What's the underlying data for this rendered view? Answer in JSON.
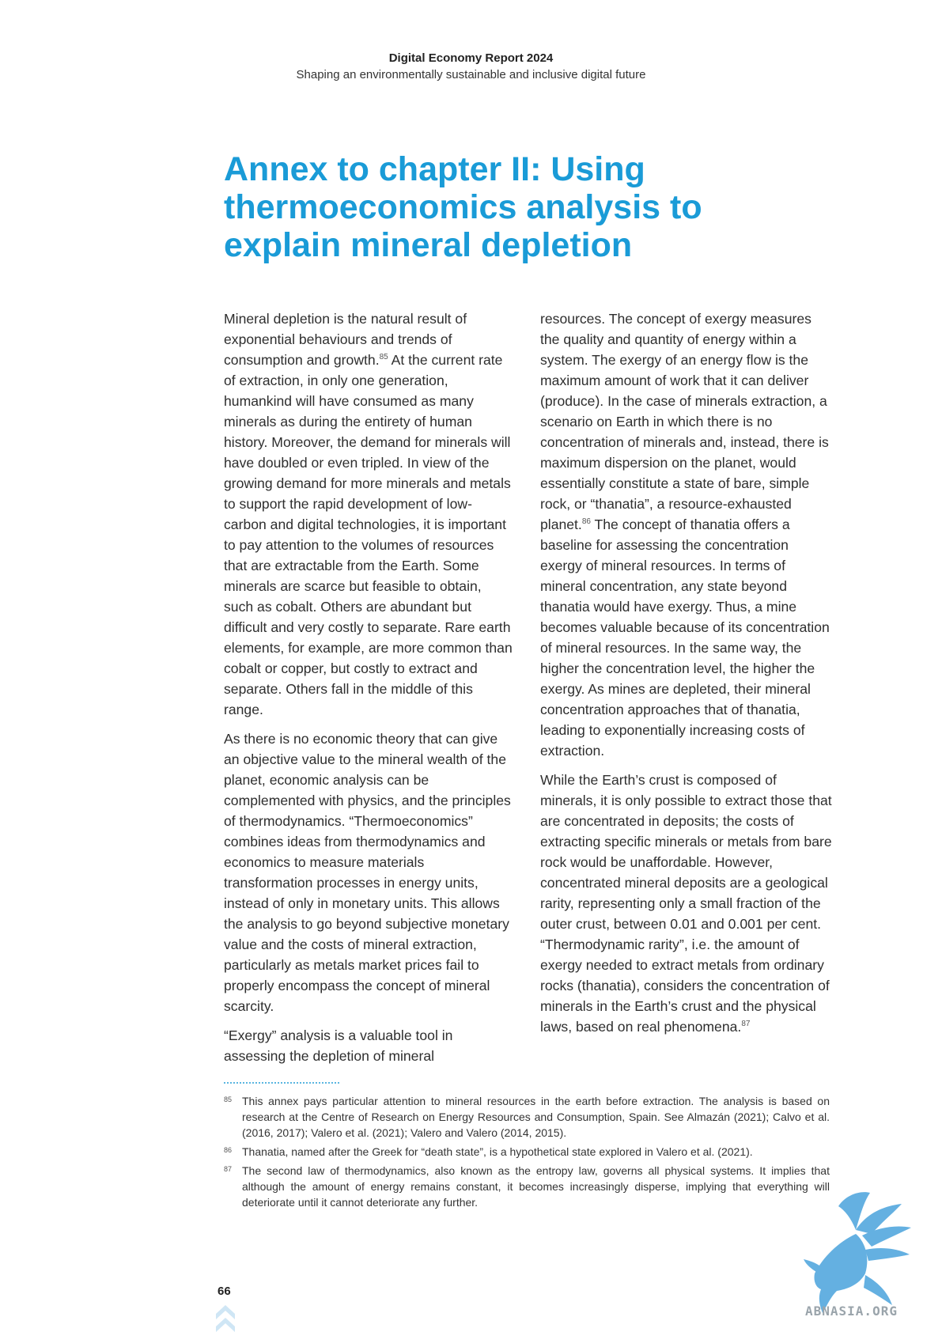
{
  "header": {
    "report_title": "Digital Economy Report 2024",
    "report_subtitle": "Shaping an environmentally sustainable and inclusive digital future"
  },
  "annex": {
    "title": "Annex to chapter II: Using thermoeconomics analysis to explain mineral depletion"
  },
  "body": {
    "left": {
      "p1_a": "Mineral depletion is the natural result of exponential behaviours and trends of consumption and growth.",
      "p1_fn": "85",
      "p1_b": " At the current rate of extraction, in only one generation, humankind will have consumed as many minerals as during the entirety of human history. Moreover, the demand for minerals will have doubled or even tripled. In view of the growing demand for more minerals and metals to support the rapid development of low-carbon and digital technologies, it is important to pay attention to the volumes of resources that are extractable from the Earth. Some minerals are scarce but feasible to obtain, such as cobalt. Others are abundant but difficult and very costly to separate. Rare earth elements, for example, are more common than cobalt or copper, but costly to extract and separate. Others fall in the middle of this range.",
      "p2": "As there is no economic theory that can give an objective value to the mineral wealth of the planet, economic analysis can be complemented with physics, and the principles of thermodynamics. “Thermoeconomics” combines ideas from thermodynamics and economics to measure materials transformation processes in energy units, instead of only in monetary units. This allows the analysis to go beyond subjective monetary value and the costs of mineral extraction, particularly as metals market prices fail to properly encompass the concept of mineral scarcity.",
      "p3": " “Exergy” analysis is a valuable tool in assessing the depletion of mineral"
    },
    "right": {
      "p1_a": "resources. The concept of exergy measures the quality and quantity of energy within a system. The exergy of an energy flow is the maximum amount of work that it can deliver (produce). In the case of minerals extraction, a scenario on Earth in which there is no concentration of minerals and, instead, there is maximum dispersion on the planet, would essentially constitute a state of bare, simple rock, or “thanatia”, a resource-exhausted planet.",
      "p1_fn": "86",
      "p1_b": " The concept of thanatia offers a baseline for assessing the concentration exergy of mineral resources. In terms of mineral concentration, any state beyond thanatia would have exergy. Thus, a mine becomes valuable because of its concentration of mineral resources. In the same way, the higher the concentration level, the higher the exergy. As mines are depleted, their mineral concentration approaches that of thanatia, leading to exponentially increasing costs of extraction.",
      "p2_a": "While the Earth’s crust is composed of minerals, it is only possible to extract those that are concentrated in deposits; the costs of extracting specific minerals or metals from bare rock would be unaffordable. However, concentrated mineral deposits are a geological rarity, representing only a small fraction of the outer crust, between 0.01 and 0.001 per cent. “Thermodynamic rarity”, i.e. the amount of exergy needed to extract metals from ordinary rocks (thanatia), considers the concentration of minerals in the Earth’s crust and the physical laws, based on real phenomena.",
      "p2_fn": "87"
    }
  },
  "footnotes": [
    {
      "num": "85",
      "text": "This annex pays particular attention to mineral resources in the earth before extraction. The analysis is based on research at the Centre of Research on Energy Resources and Consumption, Spain. See Almazán (2021); Calvo et al. (2016, 2017); Valero et al. (2021); Valero and Valero (2014, 2015)."
    },
    {
      "num": "86",
      "text": "Thanatia, named after the Greek for “death state”, is a hypothetical state explored in Valero et al. (2021)."
    },
    {
      "num": "87",
      "text": "The second law of thermodynamics, also known as the entropy law, governs all physical systems. It implies that although the amount of energy remains constant, it becomes increasingly disperse, implying that everything will deteriorate until it cannot deteriorate any further."
    }
  ],
  "page": {
    "number": "66"
  },
  "watermark": {
    "text": "ABNASIA.ORG",
    "icon": "griffin-logo-icon",
    "color": "#4aa3dc"
  },
  "colors": {
    "accent": "#1a9bd7"
  }
}
